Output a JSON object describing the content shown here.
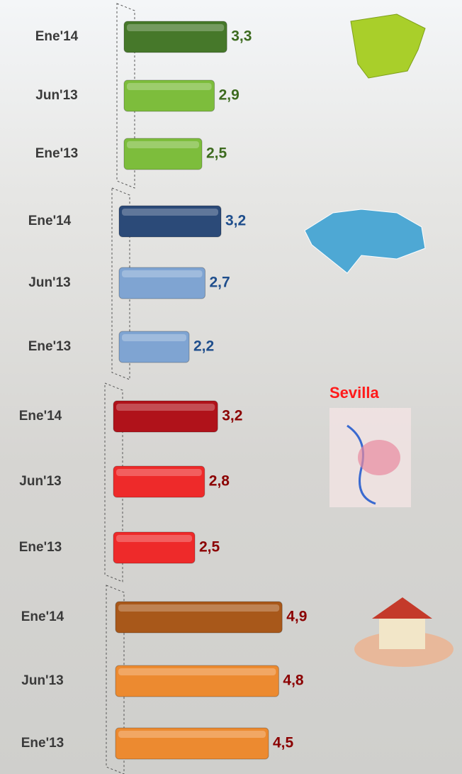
{
  "chart_data": [
    {
      "type": "bar",
      "orientation": "horizontal",
      "categories": [
        "Ene'14",
        "Jun'13",
        "Ene'13"
      ],
      "values": [
        3.3,
        2.9,
        2.5
      ],
      "value_labels": [
        "3,3",
        "2,9",
        "2,5"
      ],
      "colors": [
        "#46782a",
        "#7dbd3c",
        "#7dbd3c"
      ],
      "label_color": "#3d6b1f"
    },
    {
      "type": "bar",
      "orientation": "horizontal",
      "categories": [
        "Ene'14",
        "Jun'13",
        "Ene'13"
      ],
      "values": [
        3.2,
        2.7,
        2.2
      ],
      "value_labels": [
        "3,2",
        "2,7",
        "2,2"
      ],
      "colors": [
        "#2b4a78",
        "#7fa4d2",
        "#7fa4d2"
      ],
      "label_color": "#1f4e8c"
    },
    {
      "type": "bar",
      "orientation": "horizontal",
      "annotation": "Sevilla",
      "categories": [
        "Ene'14",
        "Jun'13",
        "Ene'13"
      ],
      "values": [
        3.2,
        2.8,
        2.5
      ],
      "value_labels": [
        "3,2",
        "2,8",
        "2,5"
      ],
      "colors": [
        "#b0121a",
        "#ee2a2a",
        "#ee2a2a"
      ],
      "label_color": "#8b0000"
    },
    {
      "type": "bar",
      "orientation": "horizontal",
      "categories": [
        "Ene'14",
        "Jun'13",
        "Ene'13"
      ],
      "values": [
        4.9,
        4.8,
        4.5
      ],
      "value_labels": [
        "4,9",
        "4,8",
        "4,5"
      ],
      "colors": [
        "#a8581a",
        "#ec8a30",
        "#ec8a30"
      ],
      "label_color": "#8b0000"
    }
  ]
}
